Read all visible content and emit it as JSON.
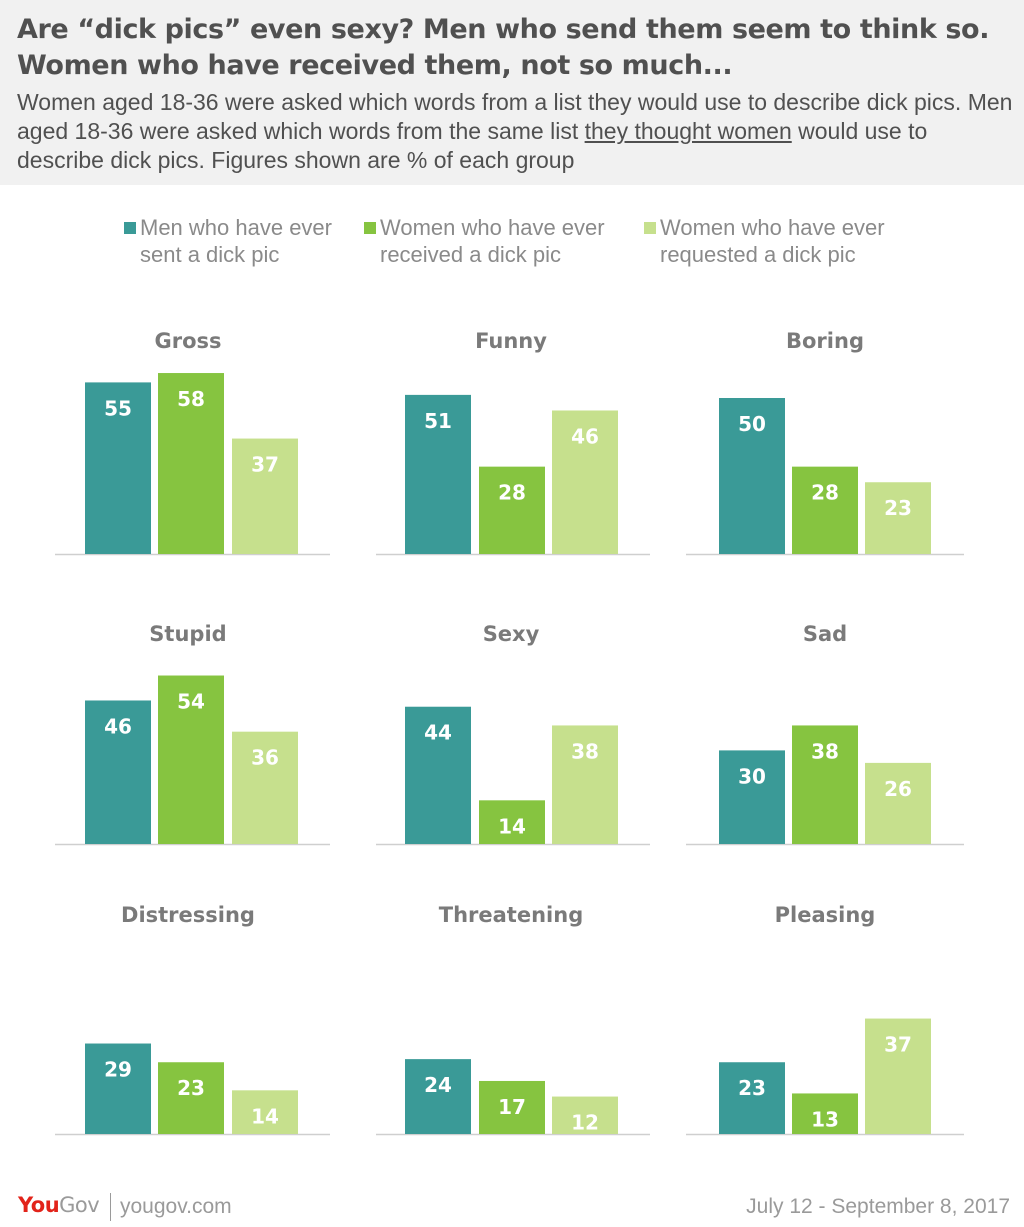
{
  "header": {
    "title": "Are “dick pics” even sexy? Men who send them seem to think so. Women who have received them, not so much...",
    "subtitle_part1": "Women aged 18-36 were asked which words from a list they would use to describe dick pics. Men aged 18-36 were asked which words from the same list ",
    "subtitle_underlined": "they thought women",
    "subtitle_part2": " would use to describe dick pics. Figures shown are % of each group"
  },
  "legend": [
    {
      "label": "Men who have ever sent a dick pic",
      "line1": "Men who have ever",
      "line2": "sent a dick pic",
      "color": "#3a9a97"
    },
    {
      "label": "Women who have ever received a dick pic",
      "line1": "Women who have ever",
      "line2": "received a dick pic",
      "color": "#86c440"
    },
    {
      "label": "Women who have ever requested a dick pic",
      "line1": "Women who have ever",
      "line2": "requested a dick pic",
      "color": "#c6e08d"
    }
  ],
  "chart_data": {
    "type": "bar",
    "series": [
      {
        "name": "Men who have ever sent a dick pic",
        "color": "#3a9a97"
      },
      {
        "name": "Women who have ever received a dick pic",
        "color": "#86c440"
      },
      {
        "name": "Women who have ever requested a dick pic",
        "color": "#c6e08d"
      }
    ],
    "panels": [
      {
        "title": "Gross",
        "values": [
          55,
          58,
          37
        ]
      },
      {
        "title": "Funny",
        "values": [
          51,
          28,
          46
        ]
      },
      {
        "title": "Boring",
        "values": [
          50,
          28,
          23
        ]
      },
      {
        "title": "Stupid",
        "values": [
          46,
          54,
          36
        ]
      },
      {
        "title": "Sexy",
        "values": [
          44,
          14,
          38
        ]
      },
      {
        "title": "Sad",
        "values": [
          30,
          38,
          26
        ]
      },
      {
        "title": "Distressing",
        "values": [
          29,
          23,
          14
        ]
      },
      {
        "title": "Threatening",
        "values": [
          24,
          17,
          12
        ]
      },
      {
        "title": "Pleasing",
        "values": [
          23,
          13,
          37
        ]
      }
    ],
    "ylim": [
      0,
      60
    ]
  },
  "footer": {
    "logo_you": "You",
    "logo_gov": "Gov",
    "site": "yougov.com",
    "date": "July 12 - September 8, 2017"
  }
}
